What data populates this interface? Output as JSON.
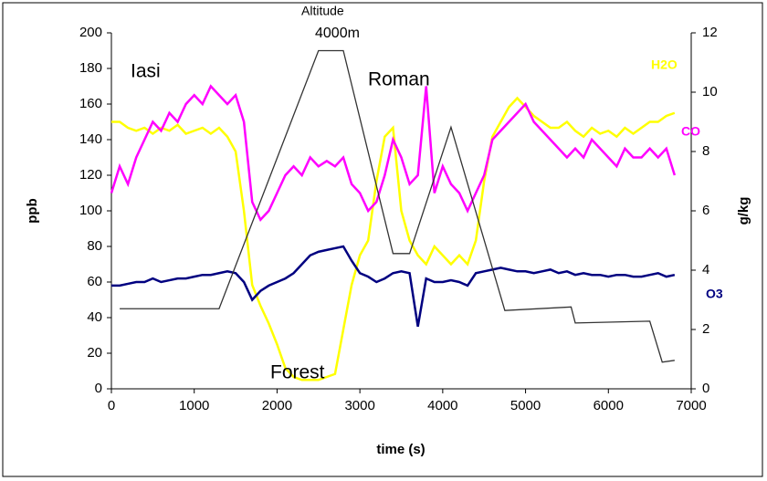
{
  "chart_data": {
    "type": "line",
    "x": [
      0,
      100,
      200,
      300,
      400,
      500,
      600,
      700,
      800,
      900,
      1000,
      1100,
      1200,
      1300,
      1400,
      1500,
      1600,
      1700,
      1800,
      1900,
      2000,
      2100,
      2200,
      2300,
      2400,
      2500,
      2600,
      2700,
      2800,
      2900,
      3000,
      3100,
      3200,
      3300,
      3400,
      3500,
      3600,
      3700,
      3800,
      3900,
      4000,
      4100,
      4200,
      4300,
      4400,
      4500,
      4600,
      4700,
      4800,
      4900,
      5000,
      5100,
      5200,
      5300,
      5400,
      5500,
      5600,
      5700,
      5800,
      5900,
      6000,
      6100,
      6200,
      6300,
      6400,
      6500,
      6600,
      6700,
      6800
    ],
    "series": [
      {
        "name": "H2O",
        "color": "#ffff00",
        "axis": "y2",
        "values": [
          9,
          9,
          8.8,
          8.7,
          8.8,
          8.6,
          8.8,
          8.7,
          8.9,
          8.6,
          8.7,
          8.8,
          8.6,
          8.8,
          8.5,
          8,
          6,
          3.5,
          2.8,
          2.2,
          1.5,
          0.7,
          0.4,
          0.3,
          0.3,
          0.3,
          0.4,
          0.5,
          2,
          3.5,
          4.5,
          5,
          7,
          8.5,
          8.8,
          6,
          5,
          4.5,
          4.2,
          4.8,
          4.5,
          4.2,
          4.5,
          4.2,
          5,
          7,
          8.5,
          9,
          9.5,
          9.8,
          9.5,
          9.2,
          9,
          8.8,
          8.8,
          9,
          8.7,
          8.5,
          8.8,
          8.6,
          8.7,
          8.5,
          8.8,
          8.6,
          8.8,
          9,
          9,
          9.2,
          9.3
        ]
      },
      {
        "name": "CO",
        "color": "#ff00ff",
        "values": [
          110,
          125,
          115,
          130,
          140,
          150,
          145,
          155,
          150,
          160,
          165,
          160,
          170,
          165,
          160,
          165,
          150,
          105,
          95,
          100,
          110,
          120,
          125,
          120,
          130,
          125,
          128,
          125,
          130,
          115,
          110,
          100,
          105,
          120,
          140,
          130,
          115,
          120,
          170,
          110,
          125,
          115,
          110,
          100,
          110,
          120,
          140,
          145,
          150,
          155,
          160,
          150,
          145,
          140,
          135,
          130,
          135,
          130,
          140,
          135,
          130,
          125,
          135,
          130,
          130,
          135,
          130,
          135,
          120
        ]
      },
      {
        "name": "O3",
        "color": "#000080",
        "values": [
          58,
          58,
          59,
          60,
          60,
          62,
          60,
          61,
          62,
          62,
          63,
          64,
          64,
          65,
          66,
          65,
          60,
          50,
          55,
          58,
          60,
          62,
          65,
          70,
          75,
          77,
          78,
          79,
          80,
          72,
          65,
          63,
          60,
          62,
          65,
          66,
          65,
          35,
          62,
          60,
          60,
          61,
          60,
          58,
          65,
          66,
          67,
          68,
          67,
          66,
          66,
          65,
          66,
          67,
          65,
          66,
          64,
          65,
          64,
          64,
          63,
          64,
          64,
          63,
          63,
          64,
          65,
          63,
          64
        ]
      },
      {
        "color": "#333333",
        "x": [
          100,
          1300,
          2500,
          2800,
          3400,
          3600,
          4100,
          4750,
          5550,
          5600,
          6500,
          6650,
          6800
        ],
        "values": [
          45,
          45,
          190,
          190,
          76,
          76,
          147,
          44,
          46,
          37,
          38,
          15,
          16
        ]
      }
    ],
    "xlabel": "time (s)",
    "ylabel": "ppb",
    "y2label": "g/kg",
    "xlim": [
      0,
      7000
    ],
    "xticks": [
      0,
      1000,
      2000,
      3000,
      4000,
      5000,
      6000,
      7000
    ],
    "ylim": [
      0,
      200
    ],
    "yticks": [
      0,
      20,
      40,
      60,
      80,
      100,
      120,
      140,
      160,
      180,
      200
    ],
    "y2lim": [
      0,
      12
    ],
    "y2ticks": [
      0,
      2,
      4,
      6,
      8,
      10,
      12
    ],
    "annotations": [
      "Iasi",
      "Roman",
      "Forest",
      "Altitude",
      "4000m"
    ]
  }
}
